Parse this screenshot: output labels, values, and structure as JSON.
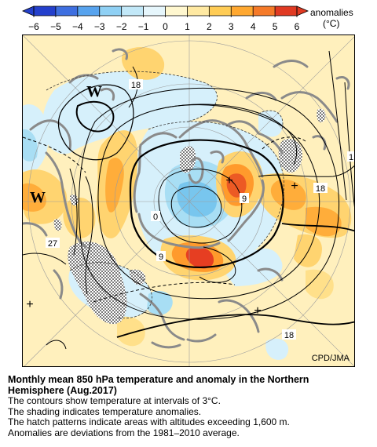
{
  "legend": {
    "title": "anomalies",
    "unit": "(°C)",
    "ticks": [
      "−6",
      "−5",
      "−4",
      "−3",
      "−2",
      "−1",
      "0",
      "1",
      "2",
      "3",
      "4",
      "5",
      "6"
    ],
    "colors": [
      "#2440cc",
      "#3e6fe0",
      "#57a3ee",
      "#8fd0f4",
      "#c2e8f8",
      "#e6f6fc",
      "#fff7cf",
      "#ffe9a2",
      "#ffcc55",
      "#ffa830",
      "#f57a28",
      "#e03a22"
    ]
  },
  "map": {
    "labels": {
      "w1": "W",
      "w2": "W",
      "c18_top": "18",
      "c18_right": "18",
      "c18_bottom": "18",
      "c1_right": "1",
      "c9_right": "9",
      "c9_bottom": "9",
      "c0": "0",
      "c27": "27",
      "plus": "+"
    },
    "credit": "CPD/JMA"
  },
  "caption": {
    "title_line1": "Monthly mean 850 hPa temperature and anomaly in the Northern",
    "title_line2": "Hemisphere (Aug.2017)",
    "lines": [
      "The contours show temperature at intervals of 3°C.",
      "The shading indicates temperature anomalies.",
      "The hatch patterns indicate areas with altitudes exceeding 1,600 m.",
      "Anomalies are deviations from the 1981–2010 average."
    ]
  }
}
